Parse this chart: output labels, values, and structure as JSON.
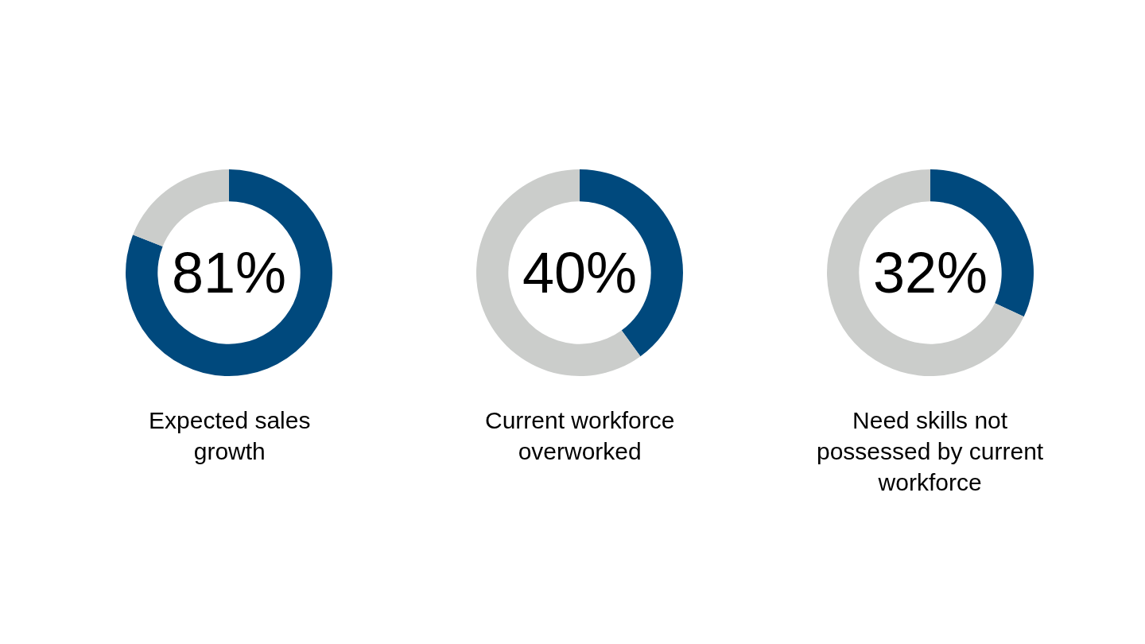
{
  "chart_data": [
    {
      "type": "donut",
      "title": "Expected sales growth",
      "categories": [
        null,
        null
      ],
      "values": [
        81,
        19
      ],
      "colors": [
        "#00497d",
        "#cbcdcb"
      ],
      "value_labels": [
        "81%",
        null
      ],
      "legend": false
    },
    {
      "type": "donut",
      "title": "Current workforce overworked",
      "categories": [
        null,
        null
      ],
      "values": [
        40,
        60
      ],
      "colors": [
        "#00497d",
        "#cbcdcb"
      ],
      "value_labels": [
        "40%",
        null
      ],
      "legend": false
    },
    {
      "type": "donut",
      "title": "Need skills not possessed by current workforce",
      "categories": [
        null,
        null
      ],
      "values": [
        32,
        68
      ],
      "colors": [
        "#00497d",
        "#cbcdcb"
      ],
      "value_labels": [
        "32%",
        null
      ],
      "legend": false
    }
  ]
}
